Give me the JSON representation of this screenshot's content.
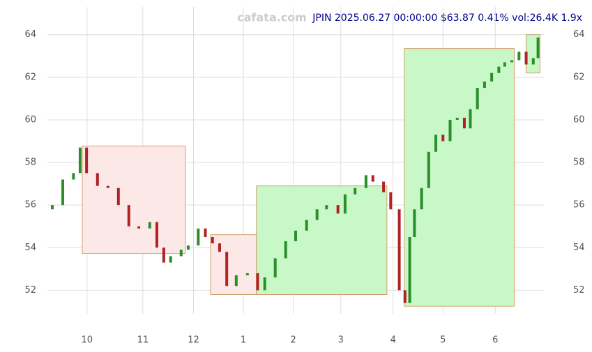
{
  "chart_data": {
    "type": "candlestick",
    "watermark": "cafata.com",
    "title": "JPIN 2025.06.27 00:00:00 $63.87 0.41% vol:26.4K 1.9x",
    "x": [
      0.6,
      5,
      9.5,
      12.3,
      15,
      19.6,
      24,
      28.4,
      32.8,
      37,
      41.6,
      44.6,
      47.5,
      50.4,
      54.8,
      57.8,
      62,
      65,
      68,
      71,
      74,
      78,
      82.7,
      87,
      90,
      94.4,
      98.8,
      103,
      107.6,
      112,
      116,
      120.8,
      123.8,
      128,
      132.6,
      135.5,
      140,
      143,
      146.6,
      149,
      151,
      153,
      156,
      159,
      162,
      165,
      168,
      171,
      174,
      176.5,
      179.5,
      182.5,
      185.5,
      188.5,
      191,
      194,
      197,
      200,
      203,
      205
    ],
    "open": [
      55.8,
      56.0,
      57.2,
      57.5,
      58.7,
      57.5,
      56.9,
      56.8,
      56.0,
      55.0,
      54.9,
      55.2,
      54.0,
      53.3,
      53.6,
      53.9,
      54.1,
      54.9,
      54.5,
      54.2,
      53.8,
      52.2,
      52.7,
      52.8,
      52.0,
      52.6,
      53.5,
      54.3,
      54.8,
      55.3,
      55.8,
      56.0,
      55.6,
      56.5,
      56.8,
      57.4,
      57.1,
      56.6,
      55.8,
      52.0,
      51.4,
      54.5,
      55.8,
      56.8,
      58.5,
      59.3,
      59.0,
      60.0,
      60.1,
      59.6,
      60.5,
      61.5,
      61.8,
      62.2,
      62.5,
      62.7,
      62.8,
      63.2,
      62.6,
      62.9
    ],
    "close": [
      56.0,
      57.2,
      57.5,
      58.7,
      57.5,
      56.9,
      56.8,
      56.0,
      55.0,
      54.9,
      55.2,
      54.0,
      53.3,
      53.6,
      53.9,
      54.1,
      54.9,
      54.5,
      54.2,
      53.8,
      52.2,
      52.7,
      52.8,
      52.0,
      52.6,
      53.5,
      54.3,
      54.8,
      55.3,
      55.8,
      56.0,
      55.6,
      56.5,
      56.8,
      57.4,
      57.1,
      56.6,
      55.8,
      52.0,
      51.4,
      54.5,
      55.8,
      56.8,
      58.5,
      59.3,
      59.0,
      60.0,
      60.1,
      59.6,
      60.5,
      61.5,
      61.8,
      62.2,
      62.5,
      62.7,
      62.8,
      63.2,
      62.6,
      62.9,
      63.87
    ],
    "up_color": "#2a8f2a",
    "down_color": "#b22222",
    "zones": [
      {
        "x": [
          13.2,
          56.6
        ],
        "y": [
          53.73,
          58.77
        ],
        "color": "#fde8e8"
      },
      {
        "x": [
          67.2,
          86.5
        ],
        "y": [
          51.8,
          54.61
        ],
        "color": "#fde8e8"
      },
      {
        "x": [
          86.5,
          141.4
        ],
        "y": [
          51.8,
          56.9
        ],
        "color": "#c8f8c8"
      },
      {
        "x": [
          148.7,
          195
        ],
        "y": [
          51.25,
          63.35
        ],
        "color": "#c8f8c8"
      },
      {
        "x": [
          200,
          205.8
        ],
        "y": [
          62.2,
          64
        ],
        "color": "#c8f8c8"
      }
    ],
    "xlim": [
      0,
      206
    ],
    "xticks": [
      {
        "value": 15.2,
        "label": "10"
      },
      {
        "value": 38.7,
        "label": "11"
      },
      {
        "value": 60,
        "label": "12"
      },
      {
        "value": 81,
        "label": "1"
      },
      {
        "value": 102,
        "label": "2"
      },
      {
        "value": 122,
        "label": "3"
      },
      {
        "value": 144,
        "label": "4"
      },
      {
        "value": 165,
        "label": "5"
      },
      {
        "value": 187,
        "label": "6"
      }
    ],
    "ylim": [
      50.9,
      65.3
    ],
    "yticks": [
      52,
      54,
      56,
      58,
      60,
      62,
      64
    ],
    "grid": true
  }
}
